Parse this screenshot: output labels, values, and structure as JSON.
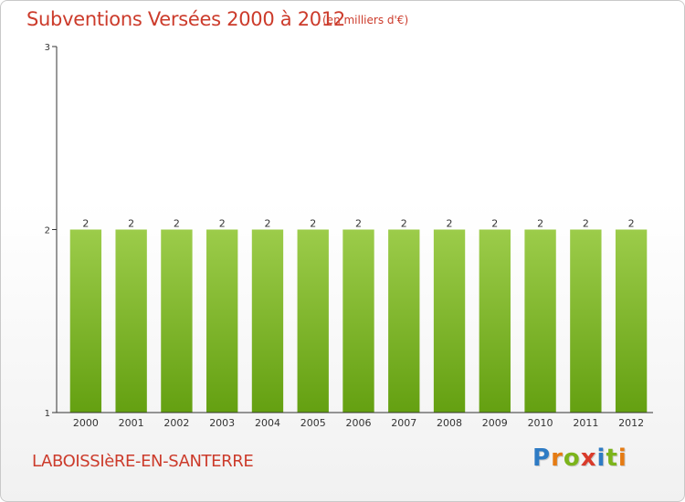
{
  "header": {
    "title": "Subventions Versées 2000 à 2012",
    "unit": "(en milliers d'€)"
  },
  "footer": {
    "commune": "LABOISSIèRE-EN-SANTERRE",
    "logo": "Proxiti"
  },
  "colors": {
    "title": "#cc3b2b",
    "bar_top": "#9ccc4a",
    "bar_bottom": "#64a011",
    "logo_letters": [
      "#2e7bc4",
      "#e57b13",
      "#7cb41c",
      "#d93b2b",
      "#2e7bc4",
      "#7cb41c",
      "#e57b13"
    ]
  },
  "chart_data": {
    "type": "bar",
    "title": "Subventions Versées 2000 à 2012",
    "ylabel": "(en milliers d'€)",
    "xlabel": "",
    "categories": [
      "2000",
      "2001",
      "2002",
      "2003",
      "2004",
      "2005",
      "2006",
      "2007",
      "2008",
      "2009",
      "2010",
      "2011",
      "2012"
    ],
    "values": [
      2,
      2,
      2,
      2,
      2,
      2,
      2,
      2,
      2,
      2,
      2,
      2,
      2
    ],
    "ylim": [
      1,
      3
    ],
    "yticks": [
      1,
      2,
      3
    ],
    "grid": false,
    "legend": "none"
  }
}
